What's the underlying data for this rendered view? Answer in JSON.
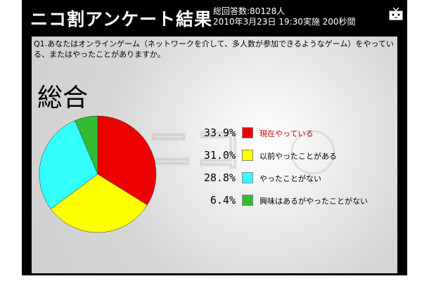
{
  "header": {
    "title": "ニコ割アンケート結果",
    "total_line": "総回答数:80128人",
    "date_line": "2010年3月23日 19:30実施 200秒間"
  },
  "question": "Q1.あなたはオンラインゲーム（ネットワークを介して、多人数が参加できるようなゲーム）をやっている、またはやったことがありますか。",
  "subtitle": "総合",
  "chart_data": {
    "type": "pie",
    "categories": [
      "現在やっている",
      "以前やったことがある",
      "やったことがない",
      "興味はあるがやったことがない"
    ],
    "values": [
      33.9,
      31.0,
      28.8,
      6.4
    ],
    "value_labels": [
      "33.9%",
      "31.0%",
      "28.8%",
      "6.4%"
    ],
    "colors": [
      "#ee0000",
      "#ffff00",
      "#33ffff",
      "#33bb33"
    ],
    "label_colors": [
      "#cc0000",
      "#000000",
      "#000000",
      "#000000"
    ],
    "title": "",
    "legend_position": "right"
  }
}
